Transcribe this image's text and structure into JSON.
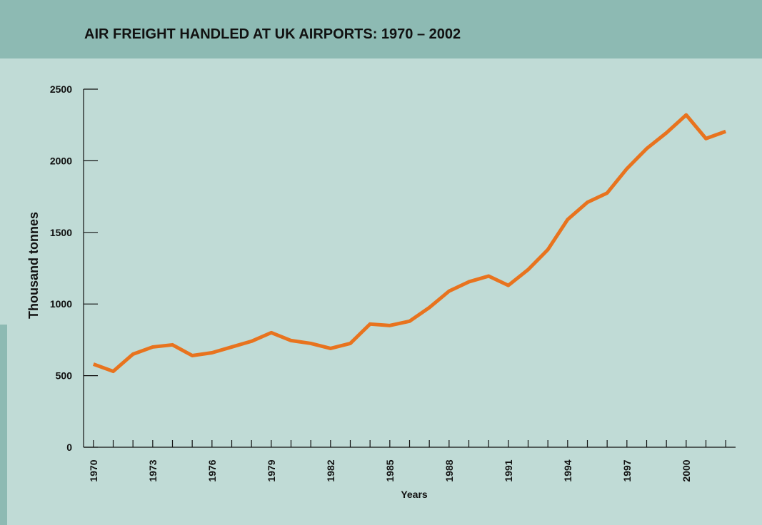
{
  "chart_data": {
    "type": "line",
    "title": "AIR FREIGHT HANDLED AT UK AIRPORTS: 1970 – 2002",
    "xlabel": "Years",
    "ylabel": "Thousand tonnes",
    "x": [
      1970,
      1971,
      1972,
      1973,
      1974,
      1975,
      1976,
      1977,
      1978,
      1979,
      1980,
      1981,
      1982,
      1983,
      1984,
      1985,
      1986,
      1987,
      1988,
      1989,
      1990,
      1991,
      1992,
      1993,
      1994,
      1995,
      1996,
      1997,
      1998,
      1999,
      2000,
      2001,
      2002
    ],
    "series": [
      {
        "name": "Air freight",
        "color": "#e8731e",
        "values": [
          580,
          530,
          650,
          700,
          715,
          640,
          660,
          700,
          740,
          800,
          745,
          725,
          690,
          725,
          860,
          850,
          880,
          975,
          1090,
          1155,
          1195,
          1130,
          1240,
          1380,
          1590,
          1710,
          1775,
          1945,
          2085,
          2195,
          2320,
          2155,
          2205
        ]
      }
    ],
    "xlim": [
      1969.5,
      2002.5
    ],
    "xticks": [
      1970,
      1973,
      1976,
      1979,
      1982,
      1985,
      1988,
      1991,
      1994,
      1997,
      2000
    ],
    "ylim": [
      0,
      2500
    ],
    "yticks": [
      0,
      500,
      1000,
      1500,
      2000,
      2500
    ]
  }
}
